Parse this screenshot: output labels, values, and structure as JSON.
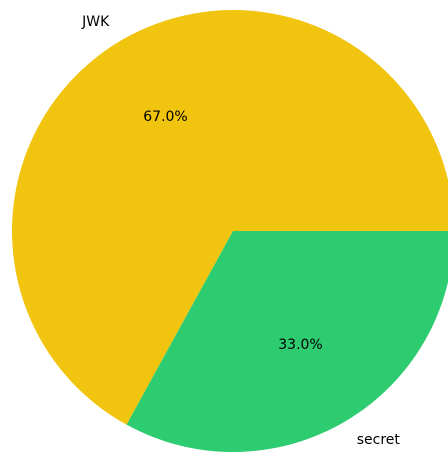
{
  "chart_data": {
    "type": "pie",
    "title": "",
    "slices": [
      {
        "label": "JWK",
        "value": 67.0,
        "percent_label": "67.0%",
        "color": "#f1c40f"
      },
      {
        "label": "secret",
        "value": 33.0,
        "percent_label": "33.0%",
        "color": "#2ecc71"
      }
    ],
    "start_angle_deg": 0,
    "direction": "counterclockwise",
    "legend": "none"
  }
}
